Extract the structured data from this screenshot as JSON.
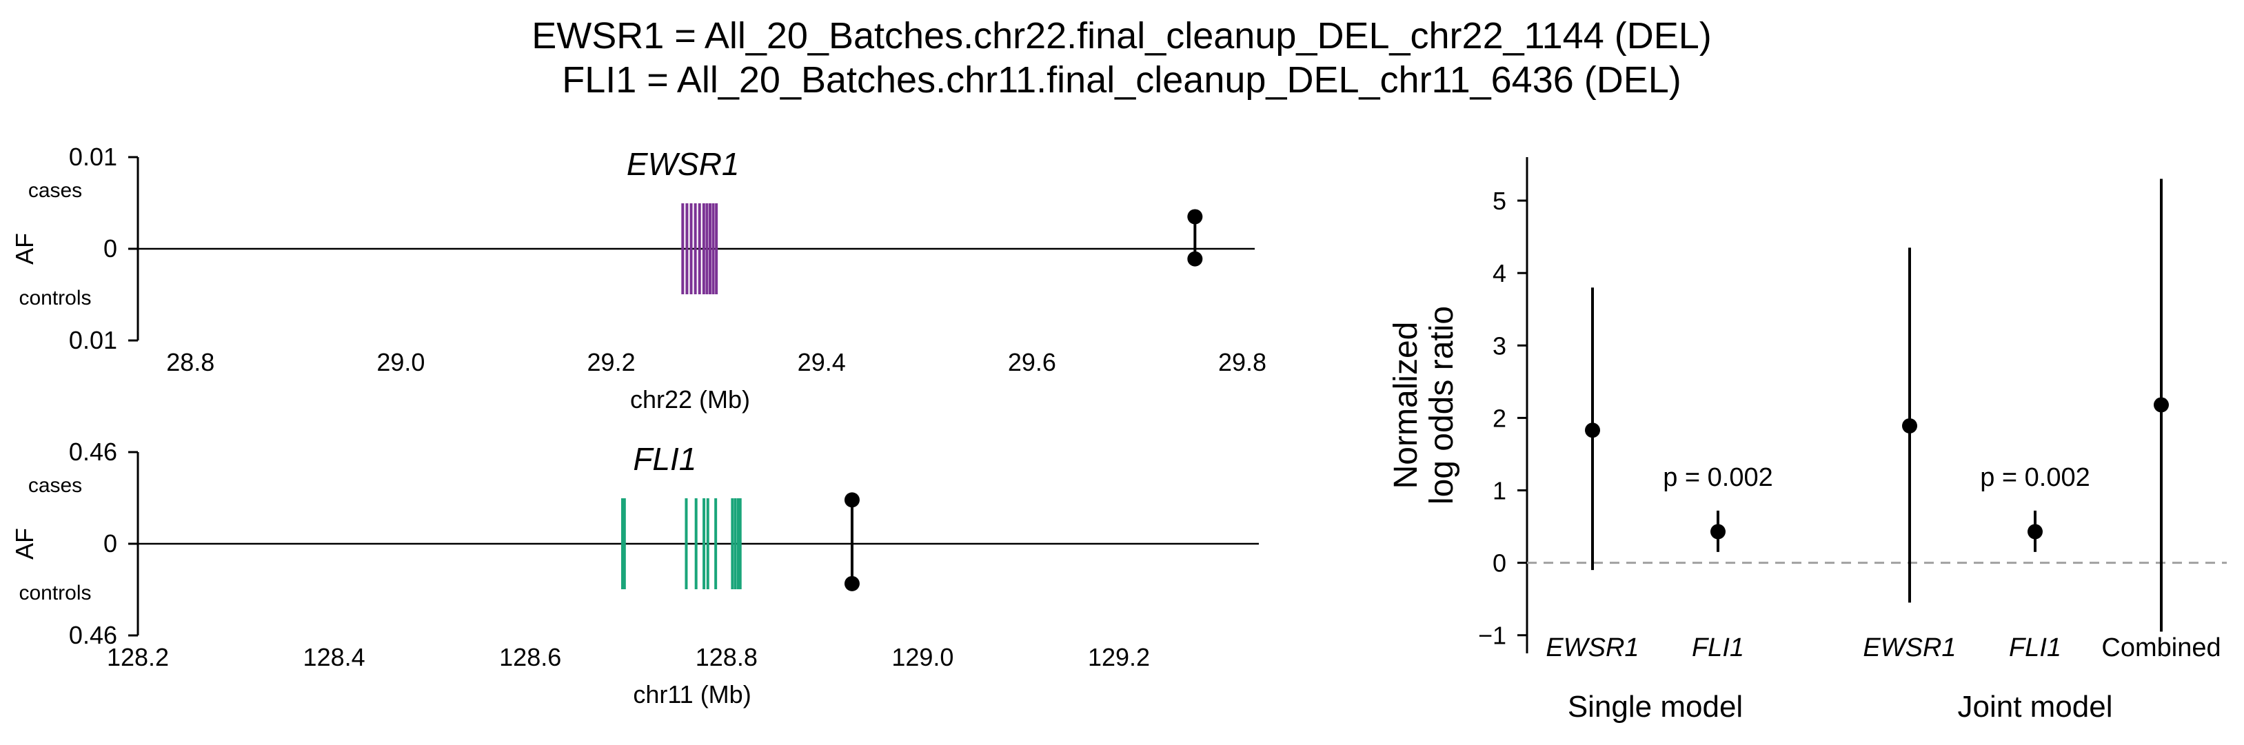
{
  "title_lines": [
    "EWSR1 = All_20_Batches.chr22.final_cleanup_DEL_chr22_1144 (DEL)",
    "FLI1 = All_20_Batches.chr11.final_cleanup_DEL_chr11_6436 (DEL)"
  ],
  "colors": {
    "ewsr1": "#7b3294",
    "fli1": "#1aa57a",
    "dashed": "#a0a0a0",
    "point": "#000000"
  },
  "chart_data": [
    {
      "type": "scatter",
      "panel": "top-left",
      "title": "EWSR1",
      "xlabel": "chr22 (Mb)",
      "ylabel": "AF",
      "xlim": [
        28.75,
        29.8
      ],
      "xticks": [
        28.8,
        29.0,
        29.2,
        29.4,
        29.6,
        29.8
      ],
      "xtick_labels": [
        "28.8",
        "29.0",
        "29.2",
        "29.4",
        "29.6",
        "29.8"
      ],
      "ytick_labels": [
        "0.01",
        "0",
        "0.01"
      ],
      "case_label": "cases",
      "control_label": "controls",
      "gene_exons_mb": [
        29.268,
        29.272,
        29.276,
        29.28,
        29.284,
        29.288,
        29.291,
        29.294,
        29.297,
        29.3
      ],
      "variant": {
        "x_mb": 29.755,
        "af_cases": 0.0035,
        "af_controls": 0.0011,
        "af_max": 0.01
      }
    },
    {
      "type": "scatter",
      "panel": "bottom-left",
      "title": "FLI1",
      "xlabel": "chr11 (Mb)",
      "ylabel": "AF",
      "xlim": [
        128.2,
        129.33
      ],
      "xticks": [
        128.2,
        128.4,
        128.6,
        128.8,
        129.0,
        129.2
      ],
      "xtick_labels": [
        "128.2",
        "128.4",
        "128.6",
        "128.8",
        "129.0",
        "129.2"
      ],
      "ytick_labels": [
        "0.46",
        "0",
        "0.46"
      ],
      "case_label": "cases",
      "control_label": "controls",
      "gene_exons_mb": [
        128.694,
        128.696,
        128.759,
        128.769,
        128.777,
        128.781,
        128.789,
        128.806,
        128.809,
        128.812,
        128.814
      ],
      "variant": {
        "x_mb": 128.928,
        "af_cases": 0.22,
        "af_controls": 0.2,
        "af_max": 0.46
      }
    },
    {
      "type": "scatter",
      "panel": "right",
      "ylabel": "Normalized log odds ratio",
      "ylabel_lines": [
        "Normalized",
        "log odds ratio"
      ],
      "ylim": [
        -1.25,
        5.6
      ],
      "yticks": [
        -1,
        0,
        1,
        2,
        3,
        4,
        5
      ],
      "ytick_labels": [
        "−1",
        "0",
        "1",
        "2",
        "3",
        "4",
        "5"
      ],
      "reference_line_y": 0,
      "groups": [
        {
          "label": "Single model",
          "categories": [
            "EWSR1",
            "FLI1"
          ]
        },
        {
          "label": "Joint model",
          "categories": [
            "EWSR1",
            "FLI1",
            "Combined"
          ]
        }
      ],
      "points": [
        {
          "category": "EWSR1",
          "group": "Single model",
          "estimate": 1.83,
          "lower": -0.1,
          "upper": 3.8,
          "italic": true,
          "p_label": ""
        },
        {
          "category": "FLI1",
          "group": "Single model",
          "estimate": 0.43,
          "lower": 0.15,
          "upper": 0.72,
          "italic": true,
          "p_label": "p = 0.002"
        },
        {
          "category": "EWSR1",
          "group": "Joint model",
          "estimate": 1.89,
          "lower": -0.55,
          "upper": 4.35,
          "italic": true,
          "p_label": ""
        },
        {
          "category": "FLI1",
          "group": "Joint model",
          "estimate": 0.43,
          "lower": 0.15,
          "upper": 0.72,
          "italic": true,
          "p_label": "p = 0.002"
        },
        {
          "category": "Combined",
          "group": "Joint model",
          "estimate": 2.18,
          "lower": -0.95,
          "upper": 5.3,
          "italic": false,
          "p_label": ""
        }
      ]
    }
  ]
}
